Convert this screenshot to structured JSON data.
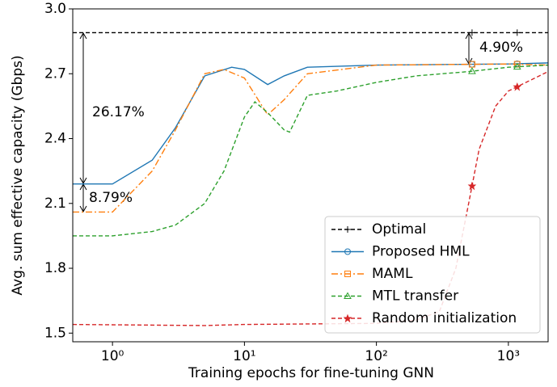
{
  "chart_data": {
    "type": "line",
    "xlabel": "Training epochs for fine-tuning GNN",
    "ylabel": "Avg. sum effective capacity (Gbps)",
    "xscale": "log",
    "xlim": [
      0.5,
      2000
    ],
    "xticks": [
      {
        "value": 1,
        "label": "10⁰"
      },
      {
        "value": 10,
        "label": "10¹"
      },
      {
        "value": 100,
        "label": "10²"
      },
      {
        "value": 1000,
        "label": "10³"
      }
    ],
    "ylim": [
      1.46,
      3.0
    ],
    "yticks": [
      1.5,
      1.8,
      2.1,
      2.4,
      2.7,
      {
        "value": 3,
        "label": "3.0"
      }
    ],
    "legend": "lower right",
    "annotations": [
      "26.17%",
      "8.79%",
      "4.90%"
    ],
    "series": [
      {
        "name": "Optimal",
        "color": "#000000",
        "dash": "dashed",
        "marker": "plus",
        "x": [
          0.5,
          1,
          10,
          100,
          500,
          1000,
          2000
        ],
        "values": [
          2.89,
          2.89,
          2.89,
          2.89,
          2.89,
          2.89,
          2.89
        ]
      },
      {
        "name": "Proposed HML",
        "color": "#1f77b4",
        "dash": "solid",
        "marker": "circle",
        "x": [
          0.5,
          1,
          2,
          3,
          5,
          8,
          10,
          15,
          20,
          30,
          100,
          1000,
          2000
        ],
        "values": [
          2.19,
          2.19,
          2.3,
          2.45,
          2.69,
          2.73,
          2.72,
          2.65,
          2.69,
          2.73,
          2.74,
          2.745,
          2.75
        ]
      },
      {
        "name": "MAML",
        "color": "#ff7f0e",
        "dash": "dashdot",
        "marker": "square",
        "x": [
          0.5,
          1,
          2,
          3,
          5,
          7,
          10,
          15,
          20,
          30,
          100,
          1000,
          2000
        ],
        "values": [
          2.06,
          2.06,
          2.25,
          2.44,
          2.7,
          2.72,
          2.68,
          2.51,
          2.58,
          2.7,
          2.74,
          2.745,
          2.74
        ]
      },
      {
        "name": "MTL transfer",
        "color": "#2ca02c",
        "dash": "dashed",
        "marker": "triangle",
        "x": [
          0.5,
          1,
          2,
          3,
          5,
          7,
          10,
          12,
          15,
          20,
          22,
          30,
          50,
          100,
          200,
          500,
          1000,
          2000
        ],
        "values": [
          1.95,
          1.95,
          1.97,
          2.0,
          2.1,
          2.25,
          2.5,
          2.57,
          2.52,
          2.44,
          2.43,
          2.6,
          2.62,
          2.66,
          2.69,
          2.71,
          2.73,
          2.74
        ]
      },
      {
        "name": "Random initialization",
        "color": "#d62728",
        "dash": "dashed",
        "marker": "star",
        "x": [
          0.5,
          5,
          10,
          100,
          200,
          300,
          400,
          500,
          600,
          800,
          1000,
          2000
        ],
        "values": [
          1.54,
          1.535,
          1.54,
          1.545,
          1.56,
          1.6,
          1.8,
          2.1,
          2.35,
          2.55,
          2.62,
          2.71
        ]
      }
    ]
  }
}
